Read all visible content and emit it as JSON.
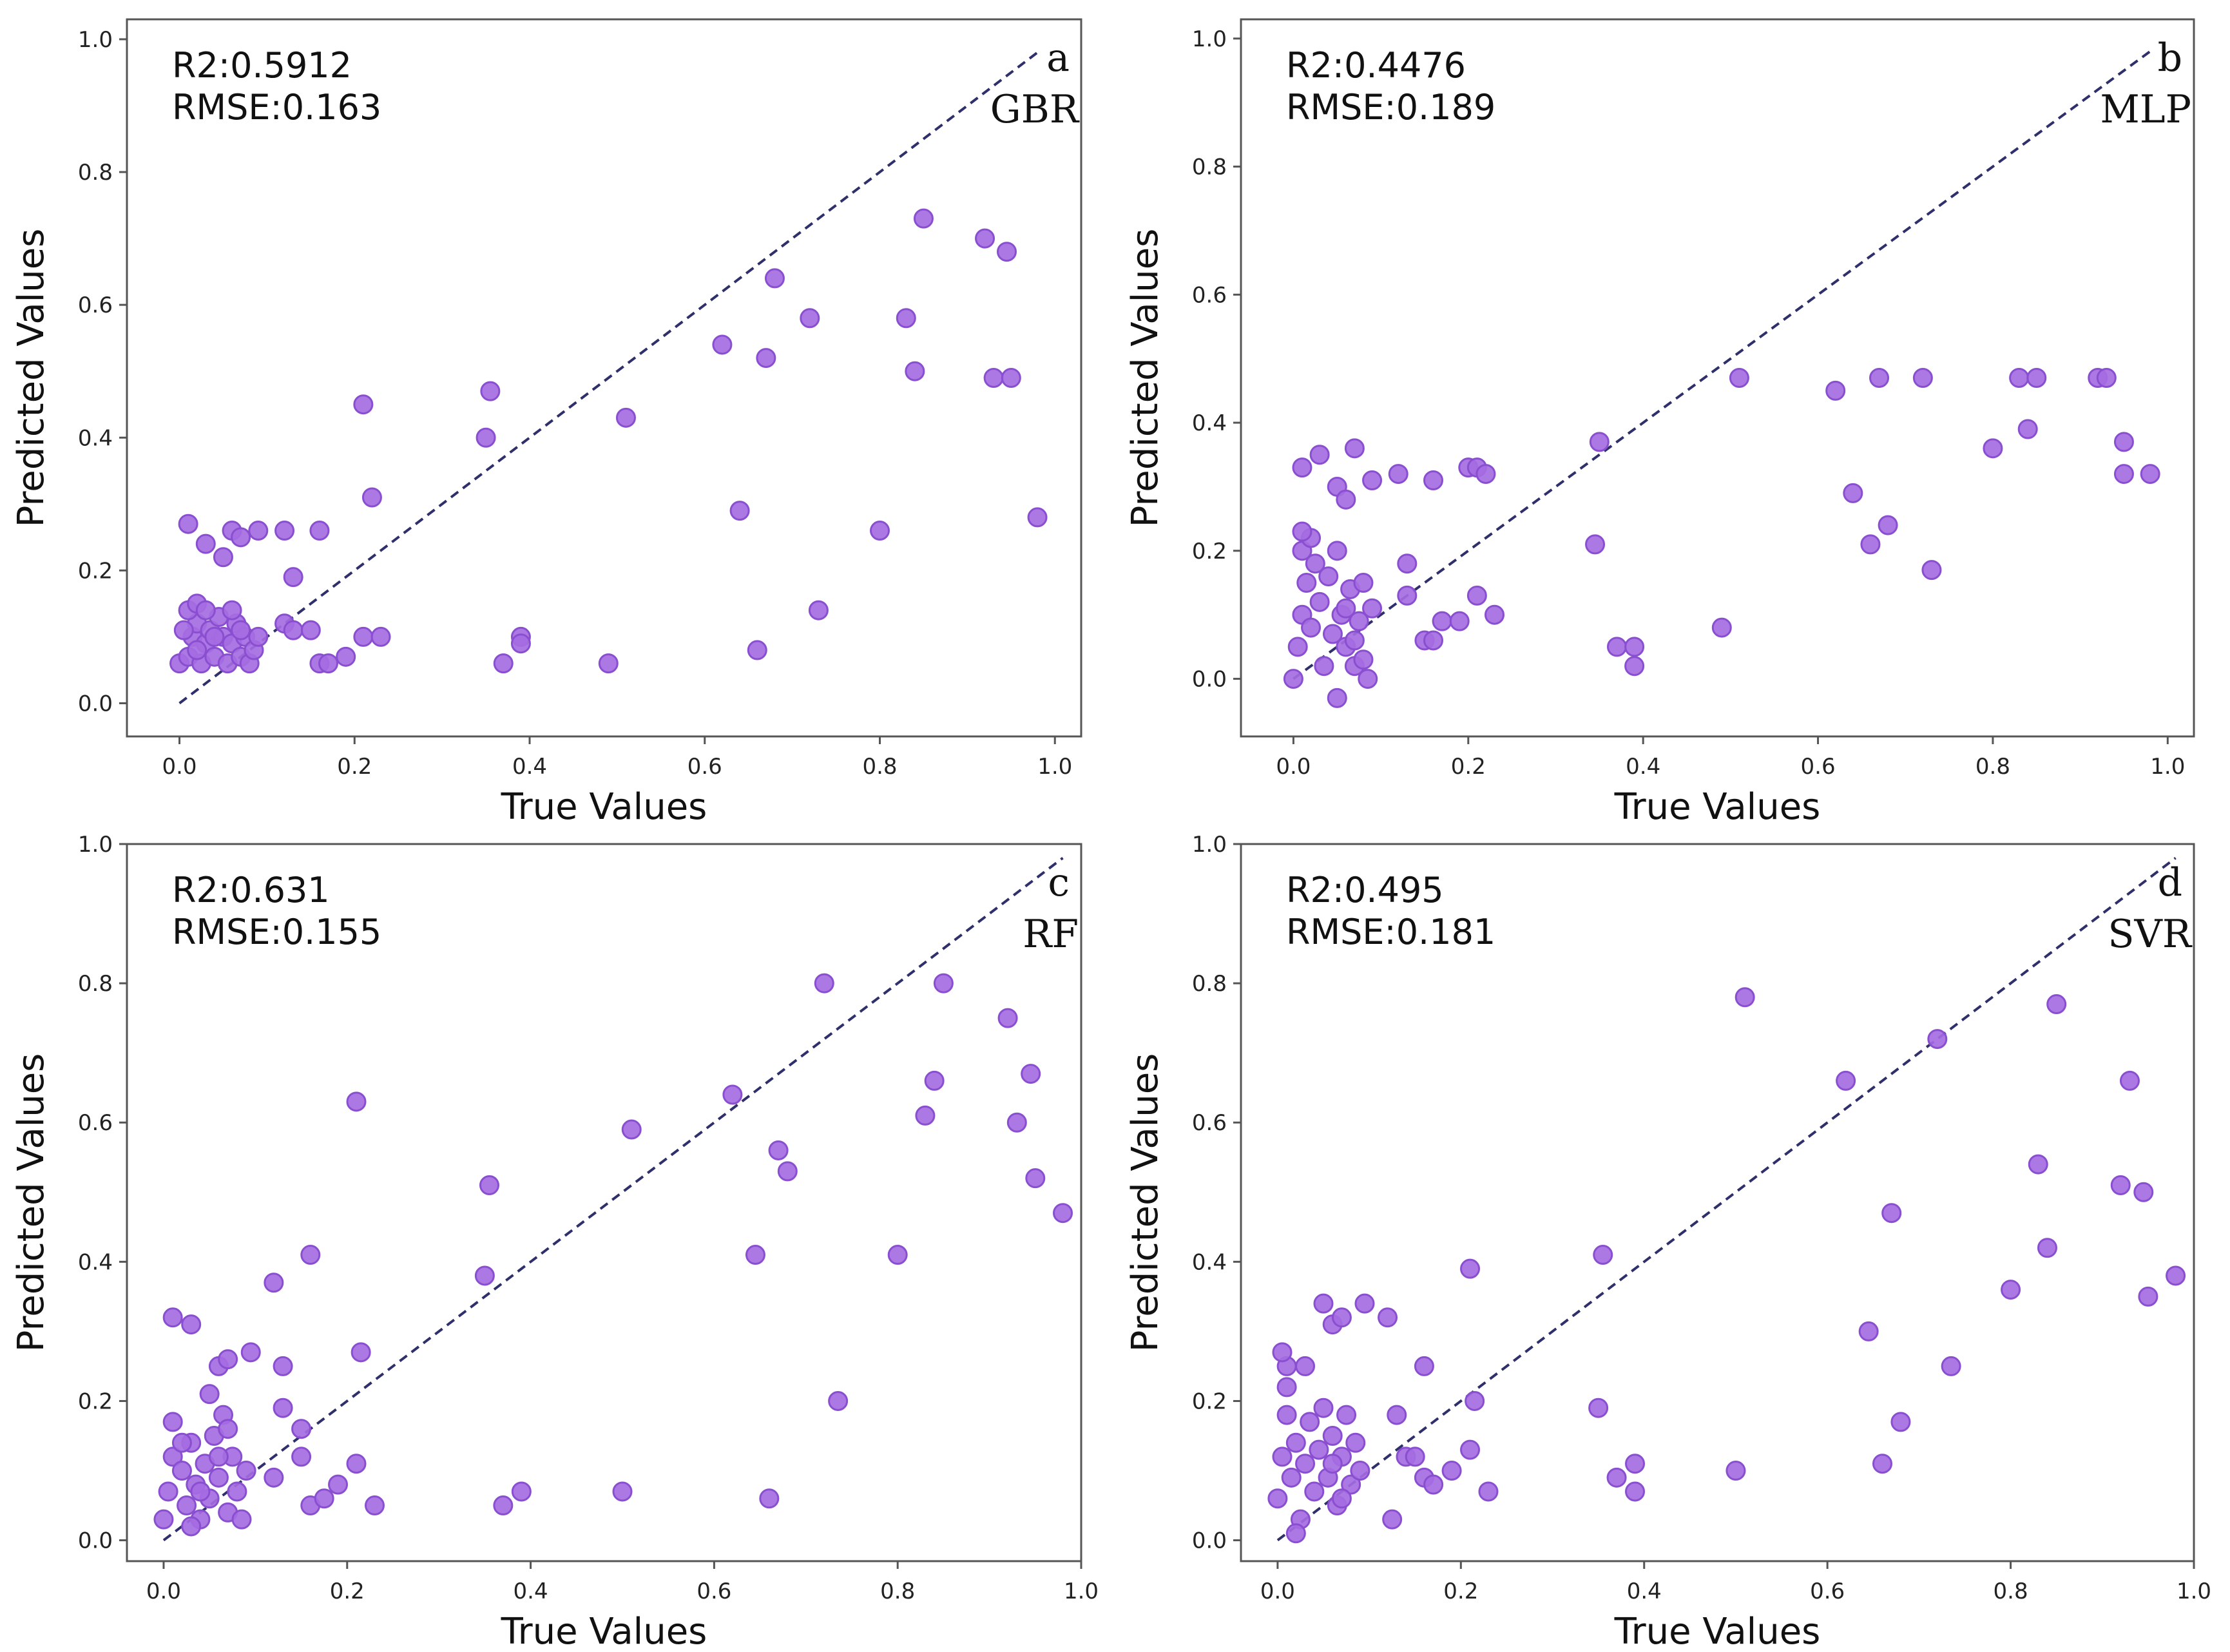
{
  "colors": {
    "point_fill": "#a56de2",
    "point_stroke": "#8a4fd0",
    "diagonal": "#2f2f6b",
    "frame": "#555555"
  },
  "chart_data": [
    {
      "type": "scatter",
      "panel_letter": "a",
      "model": "GBR",
      "metrics": {
        "r2": "R2:0.5912",
        "rmse": "RMSE:0.163"
      },
      "xlabel": "True Values",
      "ylabel": "Predicted Values",
      "xlim": [
        -0.06,
        1.03
      ],
      "ylim": [
        -0.05,
        1.03
      ],
      "xticks": [
        "0.0",
        "0.2",
        "0.4",
        "0.6",
        "0.8",
        "1.0"
      ],
      "yticks": [
        "0.0",
        "0.2",
        "0.4",
        "0.6",
        "0.8",
        "1.0"
      ],
      "diagonal": [
        0.0,
        0.98
      ],
      "points": [
        [
          0.01,
          0.27
        ],
        [
          0.03,
          0.24
        ],
        [
          0.05,
          0.22
        ],
        [
          0.06,
          0.26
        ],
        [
          0.07,
          0.25
        ],
        [
          0.09,
          0.26
        ],
        [
          0.12,
          0.26
        ],
        [
          0.16,
          0.26
        ],
        [
          0.13,
          0.19
        ],
        [
          0.21,
          0.45
        ],
        [
          0.22,
          0.31
        ],
        [
          0.35,
          0.4
        ],
        [
          0.355,
          0.47
        ],
        [
          0.51,
          0.43
        ],
        [
          0.62,
          0.54
        ],
        [
          0.64,
          0.29
        ],
        [
          0.67,
          0.52
        ],
        [
          0.68,
          0.64
        ],
        [
          0.72,
          0.58
        ],
        [
          0.73,
          0.14
        ],
        [
          0.8,
          0.26
        ],
        [
          0.83,
          0.58
        ],
        [
          0.84,
          0.5
        ],
        [
          0.85,
          0.73
        ],
        [
          0.92,
          0.7
        ],
        [
          0.93,
          0.49
        ],
        [
          0.945,
          0.68
        ],
        [
          0.95,
          0.49
        ],
        [
          0.98,
          0.28
        ],
        [
          0.12,
          0.12
        ],
        [
          0.13,
          0.11
        ],
        [
          0.15,
          0.11
        ],
        [
          0.16,
          0.06
        ],
        [
          0.17,
          0.06
        ],
        [
          0.19,
          0.07
        ],
        [
          0.21,
          0.1
        ],
        [
          0.23,
          0.1
        ],
        [
          0.37,
          0.06
        ],
        [
          0.39,
          0.1
        ],
        [
          0.39,
          0.09
        ],
        [
          0.49,
          0.06
        ],
        [
          0.66,
          0.08
        ],
        [
          0.0,
          0.06
        ],
        [
          0.01,
          0.07
        ],
        [
          0.015,
          0.1
        ],
        [
          0.02,
          0.12
        ],
        [
          0.01,
          0.14
        ],
        [
          0.02,
          0.15
        ],
        [
          0.03,
          0.09
        ],
        [
          0.025,
          0.06
        ],
        [
          0.035,
          0.11
        ],
        [
          0.04,
          0.07
        ],
        [
          0.045,
          0.13
        ],
        [
          0.05,
          0.1
        ],
        [
          0.055,
          0.06
        ],
        [
          0.06,
          0.09
        ],
        [
          0.065,
          0.12
        ],
        [
          0.07,
          0.07
        ],
        [
          0.075,
          0.1
        ],
        [
          0.08,
          0.06
        ],
        [
          0.085,
          0.08
        ],
        [
          0.09,
          0.1
        ],
        [
          0.005,
          0.11
        ],
        [
          0.03,
          0.14
        ],
        [
          0.06,
          0.14
        ],
        [
          0.04,
          0.1
        ],
        [
          0.02,
          0.08
        ],
        [
          0.07,
          0.11
        ]
      ]
    },
    {
      "type": "scatter",
      "panel_letter": "b",
      "model": "MLP",
      "metrics": {
        "r2": "R2:0.4476",
        "rmse": "RMSE:0.189"
      },
      "xlabel": "True Values",
      "ylabel": "Predicted Values",
      "xlim": [
        -0.06,
        1.03
      ],
      "ylim": [
        -0.09,
        1.03
      ],
      "xticks": [
        "0.0",
        "0.2",
        "0.4",
        "0.6",
        "0.8",
        "1.0"
      ],
      "yticks": [
        "0.0",
        "0.2",
        "0.4",
        "0.6",
        "0.8",
        "1.0"
      ],
      "diagonal": [
        0.0,
        0.98
      ],
      "points": [
        [
          0.01,
          0.33
        ],
        [
          0.03,
          0.35
        ],
        [
          0.05,
          0.3
        ],
        [
          0.06,
          0.28
        ],
        [
          0.07,
          0.36
        ],
        [
          0.09,
          0.31
        ],
        [
          0.12,
          0.32
        ],
        [
          0.16,
          0.31
        ],
        [
          0.2,
          0.33
        ],
        [
          0.21,
          0.33
        ],
        [
          0.22,
          0.32
        ],
        [
          0.35,
          0.37
        ],
        [
          0.345,
          0.21
        ],
        [
          0.51,
          0.47
        ],
        [
          0.62,
          0.45
        ],
        [
          0.64,
          0.29
        ],
        [
          0.66,
          0.21
        ],
        [
          0.67,
          0.47
        ],
        [
          0.68,
          0.24
        ],
        [
          0.72,
          0.47
        ],
        [
          0.73,
          0.17
        ],
        [
          0.8,
          0.36
        ],
        [
          0.83,
          0.47
        ],
        [
          0.84,
          0.39
        ],
        [
          0.85,
          0.47
        ],
        [
          0.92,
          0.47
        ],
        [
          0.93,
          0.47
        ],
        [
          0.95,
          0.37
        ],
        [
          0.95,
          0.32
        ],
        [
          0.98,
          0.32
        ],
        [
          0.13,
          0.18
        ],
        [
          0.13,
          0.13
        ],
        [
          0.15,
          0.06
        ],
        [
          0.16,
          0.06
        ],
        [
          0.17,
          0.09
        ],
        [
          0.19,
          0.09
        ],
        [
          0.21,
          0.13
        ],
        [
          0.23,
          0.1
        ],
        [
          0.37,
          0.05
        ],
        [
          0.39,
          0.05
        ],
        [
          0.39,
          0.02
        ],
        [
          0.49,
          0.08
        ],
        [
          0.0,
          0.0
        ],
        [
          0.005,
          0.05
        ],
        [
          0.01,
          0.1
        ],
        [
          0.015,
          0.15
        ],
        [
          0.01,
          0.2
        ],
        [
          0.02,
          0.22
        ],
        [
          0.02,
          0.08
        ],
        [
          0.03,
          0.12
        ],
        [
          0.035,
          0.02
        ],
        [
          0.04,
          0.16
        ],
        [
          0.045,
          0.07
        ],
        [
          0.05,
          0.2
        ],
        [
          0.05,
          -0.03
        ],
        [
          0.055,
          0.1
        ],
        [
          0.06,
          0.05
        ],
        [
          0.065,
          0.14
        ],
        [
          0.07,
          0.02
        ],
        [
          0.075,
          0.09
        ],
        [
          0.08,
          0.15
        ],
        [
          0.085,
          0.0
        ],
        [
          0.09,
          0.11
        ],
        [
          0.01,
          0.23
        ],
        [
          0.025,
          0.18
        ],
        [
          0.06,
          0.11
        ],
        [
          0.07,
          0.06
        ],
        [
          0.08,
          0.03
        ]
      ]
    },
    {
      "type": "scatter",
      "panel_letter": "c",
      "model": "RF",
      "metrics": {
        "r2": "R2:0.631",
        "rmse": "RMSE:0.155"
      },
      "xlabel": "True Values",
      "ylabel": "Predicted Values",
      "xlim": [
        -0.04,
        1.0
      ],
      "ylim": [
        -0.03,
        1.0
      ],
      "xticks": [
        "0.0",
        "0.2",
        "0.4",
        "0.6",
        "0.8",
        "1.0"
      ],
      "yticks": [
        "0.0",
        "0.2",
        "0.4",
        "0.6",
        "0.8",
        "1.0"
      ],
      "diagonal": [
        0.0,
        0.98
      ],
      "points": [
        [
          0.01,
          0.32
        ],
        [
          0.03,
          0.31
        ],
        [
          0.05,
          0.21
        ],
        [
          0.06,
          0.25
        ],
        [
          0.07,
          0.26
        ],
        [
          0.095,
          0.27
        ],
        [
          0.12,
          0.37
        ],
        [
          0.16,
          0.41
        ],
        [
          0.13,
          0.25
        ],
        [
          0.15,
          0.16
        ],
        [
          0.21,
          0.63
        ],
        [
          0.215,
          0.27
        ],
        [
          0.35,
          0.38
        ],
        [
          0.355,
          0.51
        ],
        [
          0.51,
          0.59
        ],
        [
          0.62,
          0.64
        ],
        [
          0.645,
          0.41
        ],
        [
          0.67,
          0.56
        ],
        [
          0.68,
          0.53
        ],
        [
          0.72,
          0.8
        ],
        [
          0.735,
          0.2
        ],
        [
          0.8,
          0.41
        ],
        [
          0.83,
          0.61
        ],
        [
          0.84,
          0.66
        ],
        [
          0.85,
          0.8
        ],
        [
          0.92,
          0.75
        ],
        [
          0.93,
          0.6
        ],
        [
          0.945,
          0.67
        ],
        [
          0.95,
          0.52
        ],
        [
          0.98,
          0.47
        ],
        [
          0.12,
          0.09
        ],
        [
          0.13,
          0.19
        ],
        [
          0.15,
          0.12
        ],
        [
          0.16,
          0.05
        ],
        [
          0.175,
          0.06
        ],
        [
          0.19,
          0.08
        ],
        [
          0.21,
          0.11
        ],
        [
          0.23,
          0.05
        ],
        [
          0.37,
          0.05
        ],
        [
          0.39,
          0.07
        ],
        [
          0.5,
          0.07
        ],
        [
          0.66,
          0.06
        ],
        [
          0.0,
          0.03
        ],
        [
          0.005,
          0.07
        ],
        [
          0.01,
          0.12
        ],
        [
          0.01,
          0.17
        ],
        [
          0.02,
          0.1
        ],
        [
          0.025,
          0.05
        ],
        [
          0.03,
          0.14
        ],
        [
          0.035,
          0.08
        ],
        [
          0.04,
          0.03
        ],
        [
          0.045,
          0.11
        ],
        [
          0.05,
          0.06
        ],
        [
          0.055,
          0.15
        ],
        [
          0.06,
          0.09
        ],
        [
          0.065,
          0.18
        ],
        [
          0.07,
          0.04
        ],
        [
          0.075,
          0.12
        ],
        [
          0.08,
          0.07
        ],
        [
          0.085,
          0.03
        ],
        [
          0.09,
          0.1
        ],
        [
          0.02,
          0.14
        ],
        [
          0.06,
          0.12
        ],
        [
          0.07,
          0.16
        ],
        [
          0.04,
          0.07
        ],
        [
          0.03,
          0.02
        ]
      ]
    },
    {
      "type": "scatter",
      "panel_letter": "d",
      "model": "SVR",
      "metrics": {
        "r2": "R2:0.495",
        "rmse": "RMSE:0.181"
      },
      "xlabel": "True Values",
      "ylabel": "Predicted Values",
      "xlim": [
        -0.04,
        1.0
      ],
      "ylim": [
        -0.03,
        1.0
      ],
      "xticks": [
        "0.0",
        "0.2",
        "0.4",
        "0.6",
        "0.8",
        "1.0"
      ],
      "yticks": [
        "0.0",
        "0.2",
        "0.4",
        "0.6",
        "0.8",
        "1.0"
      ],
      "diagonal": [
        0.0,
        0.98
      ],
      "points": [
        [
          0.01,
          0.25
        ],
        [
          0.03,
          0.25
        ],
        [
          0.05,
          0.34
        ],
        [
          0.06,
          0.31
        ],
        [
          0.07,
          0.32
        ],
        [
          0.095,
          0.34
        ],
        [
          0.12,
          0.32
        ],
        [
          0.16,
          0.25
        ],
        [
          0.21,
          0.39
        ],
        [
          0.215,
          0.2
        ],
        [
          0.35,
          0.19
        ],
        [
          0.355,
          0.41
        ],
        [
          0.51,
          0.78
        ],
        [
          0.62,
          0.66
        ],
        [
          0.645,
          0.3
        ],
        [
          0.66,
          0.11
        ],
        [
          0.67,
          0.47
        ],
        [
          0.68,
          0.17
        ],
        [
          0.72,
          0.72
        ],
        [
          0.735,
          0.25
        ],
        [
          0.8,
          0.36
        ],
        [
          0.83,
          0.54
        ],
        [
          0.84,
          0.42
        ],
        [
          0.85,
          0.77
        ],
        [
          0.92,
          0.51
        ],
        [
          0.93,
          0.66
        ],
        [
          0.945,
          0.5
        ],
        [
          0.95,
          0.35
        ],
        [
          0.98,
          0.38
        ],
        [
          0.125,
          0.03
        ],
        [
          0.13,
          0.18
        ],
        [
          0.14,
          0.12
        ],
        [
          0.15,
          0.12
        ],
        [
          0.16,
          0.09
        ],
        [
          0.17,
          0.08
        ],
        [
          0.19,
          0.1
        ],
        [
          0.21,
          0.13
        ],
        [
          0.23,
          0.07
        ],
        [
          0.37,
          0.09
        ],
        [
          0.39,
          0.11
        ],
        [
          0.39,
          0.07
        ],
        [
          0.5,
          0.1
        ],
        [
          0.0,
          0.06
        ],
        [
          0.005,
          0.12
        ],
        [
          0.01,
          0.18
        ],
        [
          0.01,
          0.22
        ],
        [
          0.015,
          0.09
        ],
        [
          0.02,
          0.14
        ],
        [
          0.025,
          0.03
        ],
        [
          0.03,
          0.11
        ],
        [
          0.035,
          0.17
        ],
        [
          0.04,
          0.07
        ],
        [
          0.045,
          0.13
        ],
        [
          0.05,
          0.19
        ],
        [
          0.055,
          0.09
        ],
        [
          0.06,
          0.15
        ],
        [
          0.065,
          0.05
        ],
        [
          0.07,
          0.12
        ],
        [
          0.075,
          0.18
        ],
        [
          0.08,
          0.08
        ],
        [
          0.085,
          0.14
        ],
        [
          0.09,
          0.1
        ],
        [
          0.02,
          0.01
        ],
        [
          0.005,
          0.27
        ],
        [
          0.06,
          0.11
        ],
        [
          0.07,
          0.06
        ]
      ]
    }
  ]
}
